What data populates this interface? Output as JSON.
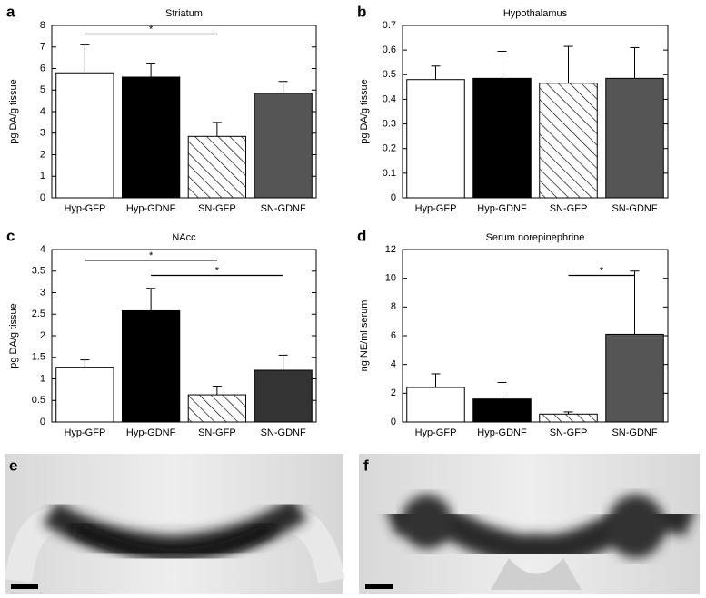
{
  "chart_data": [
    {
      "type": "bar",
      "panel": "a",
      "title": "Striatum",
      "ylabel": "pg DA/g tissue",
      "categories": [
        "Hyp-GFP",
        "Hyp-GDNF",
        "SN-GFP",
        "SN-GDNF"
      ],
      "values": [
        5.8,
        5.6,
        2.85,
        4.85
      ],
      "errors": [
        1.3,
        0.65,
        0.65,
        0.55
      ],
      "colors": [
        "#ffffff",
        "#000000",
        "#ffffff",
        "#555555"
      ],
      "hatched": [
        false,
        false,
        true,
        false
      ],
      "ylim": [
        0,
        8
      ],
      "yticks": [
        0,
        1,
        2,
        3,
        4,
        5,
        6,
        7,
        8
      ],
      "significance": [
        {
          "from": 0,
          "to": 2,
          "y": 7.6,
          "label": "*"
        }
      ]
    },
    {
      "type": "bar",
      "panel": "b",
      "title": "Hypothalamus",
      "ylabel": "pg DA/g tissue",
      "categories": [
        "Hyp-GFP",
        "Hyp-GDNF",
        "SN-GFP",
        "SN-GDNF"
      ],
      "values": [
        0.48,
        0.485,
        0.465,
        0.485
      ],
      "errors": [
        0.055,
        0.11,
        0.15,
        0.125
      ],
      "colors": [
        "#ffffff",
        "#000000",
        "#ffffff",
        "#555555"
      ],
      "hatched": [
        false,
        false,
        true,
        false
      ],
      "ylim": [
        0,
        0.7
      ],
      "yticks": [
        0,
        0.1,
        0.2,
        0.3,
        0.4,
        0.5,
        0.6,
        0.7
      ],
      "significance": []
    },
    {
      "type": "bar",
      "panel": "c",
      "title": "NAcc",
      "ylabel": "pg DA/g tissue",
      "categories": [
        "Hyp-GFP",
        "Hyp-GDNF",
        "SN-GFP",
        "SN-GDNF"
      ],
      "values": [
        1.27,
        2.58,
        0.63,
        1.2
      ],
      "errors": [
        0.17,
        0.52,
        0.2,
        0.35
      ],
      "colors": [
        "#ffffff",
        "#000000",
        "#ffffff",
        "#333333"
      ],
      "hatched": [
        false,
        false,
        true,
        false
      ],
      "ylim": [
        0,
        4
      ],
      "yticks": [
        0,
        0.5,
        1,
        1.5,
        2,
        2.5,
        3,
        3.5,
        4
      ],
      "significance": [
        {
          "from": 0,
          "to": 2,
          "y": 3.75,
          "label": "*"
        },
        {
          "from": 1,
          "to": 3,
          "y": 3.4,
          "label": "*"
        }
      ]
    },
    {
      "type": "bar",
      "panel": "d",
      "title": "Serum norepinephrine",
      "ylabel": "ng NE/ml serum",
      "categories": [
        "Hyp-GFP",
        "Hyp-GDNF",
        "SN-GFP",
        "SN-GDNF"
      ],
      "values": [
        2.4,
        1.6,
        0.55,
        6.1
      ],
      "errors": [
        0.95,
        1.15,
        0.15,
        4.4
      ],
      "colors": [
        "#ffffff",
        "#000000",
        "#ffffff",
        "#555555"
      ],
      "hatched": [
        false,
        false,
        true,
        false
      ],
      "ylim": [
        0,
        12
      ],
      "yticks": [
        0,
        2,
        4,
        6,
        8,
        10,
        12
      ],
      "significance": [
        {
          "from": 2,
          "to": 3,
          "y": 10.2,
          "label": "*"
        }
      ]
    }
  ],
  "micrographs": [
    {
      "panel": "e"
    },
    {
      "panel": "f"
    }
  ]
}
